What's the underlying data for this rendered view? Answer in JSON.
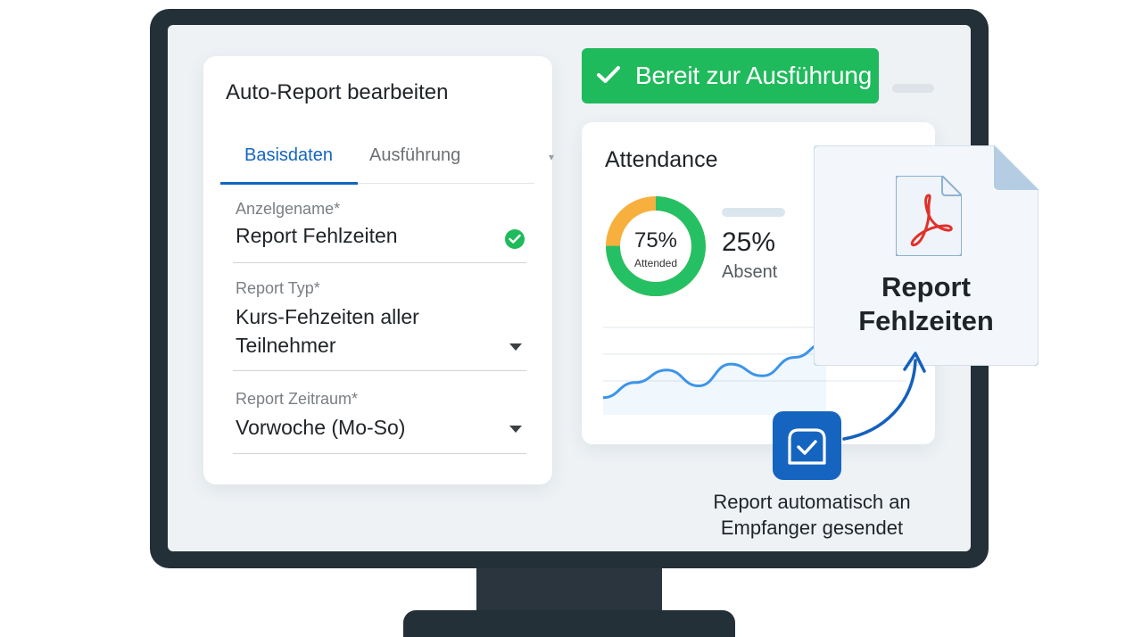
{
  "form": {
    "title": "Auto-Report bearbeiten",
    "tabs": [
      {
        "label": "Basisdaten",
        "active": true
      },
      {
        "label": "Ausführung",
        "active": false
      }
    ],
    "fields": {
      "display_name": {
        "label": "Anzelgename*",
        "value": "Report Fehlzeiten",
        "valid": true
      },
      "report_type": {
        "label": "Report Typ*",
        "value": "Kurs-Fehzeiten aller Teilnehmer"
      },
      "report_period": {
        "label": "Report Zeitraum*",
        "value": "Vorwoche (Mo-So)"
      }
    }
  },
  "status_banner": {
    "text": "Bereit zur Ausführung",
    "color": "#1fba5b"
  },
  "attendance": {
    "title": "Attendance",
    "attended_value": "75%",
    "attended_label": "Attended",
    "absent_value": "25%",
    "absent_label": "Absent",
    "attended_fraction": 0.75,
    "colors": {
      "attended": "#26c064",
      "absent": "#f7b03e",
      "line": "#3d94e8"
    }
  },
  "chart_data": {
    "type": "line",
    "x": [
      1,
      2,
      3,
      4,
      5,
      6,
      7,
      8
    ],
    "series": [
      {
        "values": [
          12,
          30,
          45,
          26,
          52,
          38,
          60,
          78
        ]
      }
    ],
    "ylim": [
      0,
      100
    ],
    "title": "",
    "xlabel": "",
    "ylabel": ""
  },
  "report_file": {
    "title": "Report Fehlzeiten",
    "icon": "pdf-icon"
  },
  "delivery": {
    "caption": "Report automatisch an Empfanger gesendet",
    "icon": "mailbox-check-icon"
  }
}
